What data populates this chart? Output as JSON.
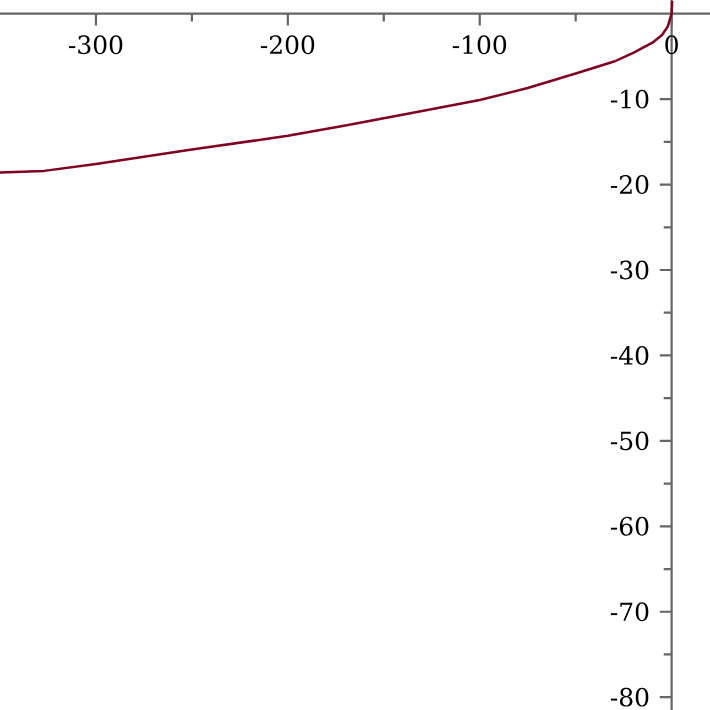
{
  "chart_data": {
    "type": "line",
    "xlim": [
      -350,
      20
    ],
    "ylim": [
      -81.5,
      1.6
    ],
    "xticks": [
      -300,
      -200,
      -100,
      0
    ],
    "yticks": [
      -80,
      -70,
      -60,
      -50,
      -40,
      -30,
      -20,
      -10
    ],
    "x": [
      -350,
      -327,
      -300,
      -250,
      -200,
      -170,
      -130,
      -100,
      -75,
      -50,
      -30,
      -20,
      -10,
      -5,
      -2,
      0,
      0.3
    ],
    "series": [
      {
        "color": "#7f0020",
        "values": [
          -18.6,
          -18.4,
          -17.6,
          -15.9,
          -14.3,
          -13.1,
          -11.4,
          -10.1,
          -8.7,
          -7.0,
          -5.6,
          -4.6,
          -3.4,
          -2.5,
          -1.5,
          0,
          1.5
        ]
      }
    ],
    "grid": false,
    "marker": "none",
    "line_style": "solid"
  }
}
